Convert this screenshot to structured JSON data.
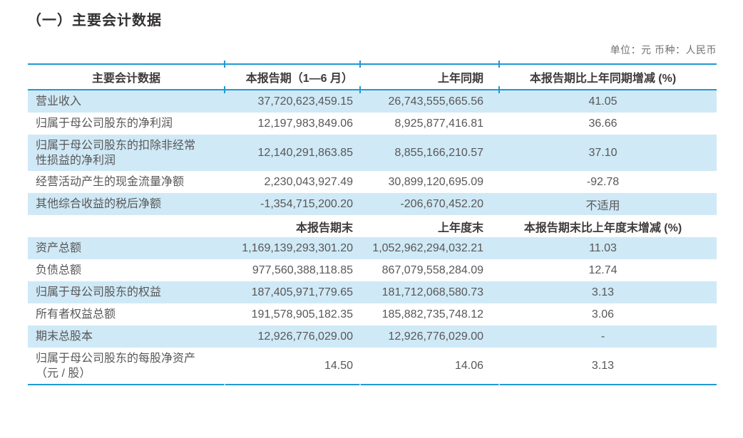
{
  "page": {
    "title": "（一）主要会计数据",
    "unit_note": "单位：元 币种：人民币"
  },
  "colors": {
    "accent": "#2199d5",
    "row_shade": "#cfe9f6",
    "header_text": "#3e3a39",
    "body_text": "#595757",
    "title_text": "#333030",
    "note_text": "#717171"
  },
  "table": {
    "section_period": {
      "headers": [
        "主要会计数据",
        "本报告期（1—6 月）",
        "上年同期",
        "本报告期比上年同期增减 (%)"
      ],
      "rows": [
        {
          "label": "营业收入",
          "current": "37,720,623,459.15",
          "prior": "26,743,555,665.56",
          "change": "41.05"
        },
        {
          "label": "归属于母公司股东的净利润",
          "current": "12,197,983,849.06",
          "prior": "8,925,877,416.81",
          "change": "36.66"
        },
        {
          "label": "归属于母公司股东的扣除非经常性损益的净利润",
          "current": "12,140,291,863.85",
          "prior": "8,855,166,210.57",
          "change": "37.10"
        },
        {
          "label": "经营活动产生的现金流量净额",
          "current": "2,230,043,927.49",
          "prior": "30,899,120,695.09",
          "change": "-92.78"
        },
        {
          "label": "其他综合收益的税后净额",
          "current": "-1,354,715,200.20",
          "prior": "-206,670,452.20",
          "change": "不适用"
        }
      ]
    },
    "section_balance": {
      "headers": [
        "",
        "本报告期末",
        "上年度末",
        "本报告期末比上年度末增减 (%)"
      ],
      "rows": [
        {
          "label": "资产总额",
          "current": "1,169,139,293,301.20",
          "prior": "1,052,962,294,032.21",
          "change": "11.03"
        },
        {
          "label": "负债总额",
          "current": "977,560,388,118.85",
          "prior": "867,079,558,284.09",
          "change": "12.74"
        },
        {
          "label": "归属于母公司股东的权益",
          "current": "187,405,971,779.65",
          "prior": "181,712,068,580.73",
          "change": "3.13"
        },
        {
          "label": "所有者权益总额",
          "current": "191,578,905,182.35",
          "prior": "185,882,735,748.12",
          "change": "3.06"
        },
        {
          "label": "期末总股本",
          "current": "12,926,776,029.00",
          "prior": "12,926,776,029.00",
          "change": "-"
        },
        {
          "label": "归属于母公司股东的每股净资产（元 / 股）",
          "current": "14.50",
          "prior": "14.06",
          "change": "3.13"
        }
      ]
    }
  }
}
